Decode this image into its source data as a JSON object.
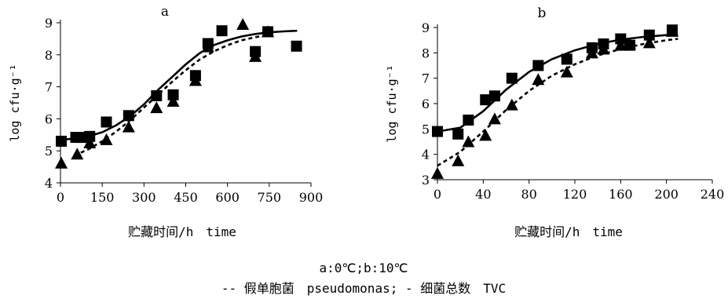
{
  "figure": {
    "caption_line1": "a:0℃;b:10℃",
    "caption_line2": "-- 假单胞菌　pseudomonas; - 细菌总数　TVC"
  },
  "chart_data": [
    {
      "type": "scatter",
      "title": "a",
      "xlabel": "贮藏时间/h　time",
      "ylabel": "log cfu·g⁻¹",
      "xlim": [
        0,
        900
      ],
      "ylim": [
        4,
        9
      ],
      "xticks": [
        "0",
        "150",
        "300",
        "450",
        "600",
        "750",
        "900"
      ],
      "yticks": [
        "4",
        "5",
        "6",
        "7",
        "8",
        "9"
      ],
      "series": [
        {
          "marker": "square",
          "line": "solid",
          "points": [
            [
              3,
              5.3
            ],
            [
              55,
              5.42
            ],
            [
              80,
              5.42
            ],
            [
              105,
              5.45
            ],
            [
              165,
              5.9
            ],
            [
              245,
              6.1
            ],
            [
              345,
              6.72
            ],
            [
              405,
              6.75
            ],
            [
              485,
              7.35
            ],
            [
              530,
              8.35
            ],
            [
              580,
              8.75
            ],
            [
              700,
              8.1
            ],
            [
              745,
              8.72
            ],
            [
              848,
              8.27
            ]
          ],
          "fit": [
            [
              0,
              5.35
            ],
            [
              50,
              5.38
            ],
            [
              100,
              5.45
            ],
            [
              150,
              5.58
            ],
            [
              200,
              5.8
            ],
            [
              250,
              6.08
            ],
            [
              300,
              6.45
            ],
            [
              350,
              6.9
            ],
            [
              400,
              7.3
            ],
            [
              450,
              7.7
            ],
            [
              500,
              8.05
            ],
            [
              550,
              8.3
            ],
            [
              600,
              8.45
            ],
            [
              650,
              8.57
            ],
            [
              700,
              8.65
            ],
            [
              750,
              8.7
            ],
            [
              800,
              8.73
            ],
            [
              850,
              8.75
            ]
          ]
        },
        {
          "marker": "triangle",
          "line": "dashed",
          "points": [
            [
              3,
              4.62
            ],
            [
              60,
              4.9
            ],
            [
              105,
              5.25
            ],
            [
              165,
              5.35
            ],
            [
              245,
              5.75
            ],
            [
              345,
              6.35
            ],
            [
              405,
              6.55
            ],
            [
              485,
              7.2
            ],
            [
              530,
              8.25
            ],
            [
              655,
              8.95
            ],
            [
              700,
              7.95
            ],
            [
              745,
              8.72
            ]
          ],
          "fit": [
            [
              50,
              4.85
            ],
            [
              100,
              5.05
            ],
            [
              150,
              5.3
            ],
            [
              200,
              5.6
            ],
            [
              250,
              5.95
            ],
            [
              300,
              6.35
            ],
            [
              350,
              6.75
            ],
            [
              400,
              7.15
            ],
            [
              450,
              7.52
            ],
            [
              500,
              7.85
            ],
            [
              550,
              8.1
            ],
            [
              600,
              8.3
            ],
            [
              650,
              8.45
            ],
            [
              700,
              8.55
            ],
            [
              750,
              8.62
            ]
          ]
        }
      ]
    },
    {
      "type": "scatter",
      "title": "b",
      "xlabel": "贮藏时间/h　time",
      "ylabel": "log cfu·g⁻¹",
      "xlim": [
        0,
        240
      ],
      "ylim": [
        3,
        9
      ],
      "xticks": [
        "0",
        "40",
        "80",
        "120",
        "160",
        "200",
        "240"
      ],
      "yticks": [
        "3",
        "4",
        "5",
        "6",
        "7",
        "8",
        "9"
      ],
      "series": [
        {
          "marker": "square",
          "line": "solid",
          "points": [
            [
              0,
              4.9
            ],
            [
              18,
              4.8
            ],
            [
              27,
              5.35
            ],
            [
              42,
              6.15
            ],
            [
              50,
              6.3
            ],
            [
              65,
              7.0
            ],
            [
              88,
              7.5
            ],
            [
              113,
              7.75
            ],
            [
              135,
              8.2
            ],
            [
              145,
              8.35
            ],
            [
              160,
              8.55
            ],
            [
              168,
              8.3
            ],
            [
              185,
              8.7
            ],
            [
              205,
              8.9
            ]
          ],
          "fit": [
            [
              0,
              4.9
            ],
            [
              20,
              5.05
            ],
            [
              40,
              5.7
            ],
            [
              60,
              6.55
            ],
            [
              80,
              7.25
            ],
            [
              100,
              7.75
            ],
            [
              120,
              8.1
            ],
            [
              140,
              8.35
            ],
            [
              160,
              8.52
            ],
            [
              180,
              8.63
            ],
            [
              200,
              8.7
            ],
            [
              210,
              8.72
            ]
          ]
        },
        {
          "marker": "triangle",
          "line": "dashed",
          "points": [
            [
              0,
              3.25
            ],
            [
              18,
              3.75
            ],
            [
              27,
              4.5
            ],
            [
              42,
              4.75
            ],
            [
              50,
              5.4
            ],
            [
              65,
              5.95
            ],
            [
              88,
              6.95
            ],
            [
              113,
              7.25
            ],
            [
              135,
              8.0
            ],
            [
              145,
              8.15
            ],
            [
              160,
              8.3
            ],
            [
              168,
              8.35
            ],
            [
              185,
              8.4
            ],
            [
              205,
              8.85
            ]
          ],
          "fit": [
            [
              0,
              3.55
            ],
            [
              20,
              4.1
            ],
            [
              40,
              4.9
            ],
            [
              60,
              5.75
            ],
            [
              80,
              6.5
            ],
            [
              100,
              7.1
            ],
            [
              120,
              7.55
            ],
            [
              140,
              7.9
            ],
            [
              160,
              8.15
            ],
            [
              180,
              8.35
            ],
            [
              200,
              8.5
            ],
            [
              210,
              8.55
            ]
          ]
        }
      ]
    }
  ]
}
